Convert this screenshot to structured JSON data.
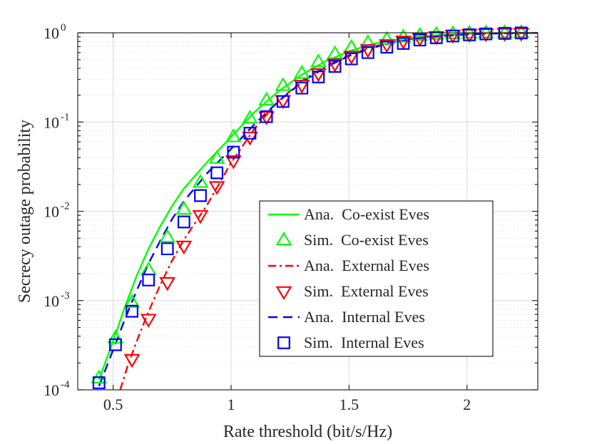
{
  "chart_data": {
    "type": "line",
    "title": "",
    "xlabel": "Rate threshold (bit/s/Hz)",
    "ylabel": "Secrecy outage probability",
    "xlim": [
      0.35,
      2.3
    ],
    "ylim": [
      0.0001,
      1
    ],
    "yscale": "log",
    "grid": true,
    "legend_position": "bottom-right",
    "x_ticks": [
      0.5,
      1,
      1.5,
      2
    ],
    "x_tick_labels": [
      "0.5",
      "1",
      "1.5",
      "2"
    ],
    "y_ticks": [
      0.0001,
      0.001,
      0.01,
      0.1,
      1
    ],
    "y_tick_labels": [
      {
        "base": "10",
        "exp": "-4"
      },
      {
        "base": "10",
        "exp": "-3"
      },
      {
        "base": "10",
        "exp": "-2"
      },
      {
        "base": "10",
        "exp": "-1"
      },
      {
        "base": "10",
        "exp": "0"
      }
    ],
    "series": [
      {
        "name": "Ana.  Co-exist Eves",
        "kind": "line",
        "color": "#00ff00",
        "dash": "solid",
        "x": [
          0.44,
          0.5,
          0.55,
          0.6,
          0.65,
          0.7,
          0.75,
          0.8,
          0.9,
          1.0,
          1.1,
          1.2,
          1.3,
          1.4,
          1.5,
          1.6,
          1.7,
          1.8,
          1.9,
          2.0,
          2.1,
          2.2,
          2.3
        ],
        "y": [
          0.00013,
          0.00035,
          0.00085,
          0.0019,
          0.0038,
          0.0068,
          0.0115,
          0.018,
          0.036,
          0.068,
          0.13,
          0.22,
          0.34,
          0.48,
          0.62,
          0.75,
          0.84,
          0.91,
          0.95,
          0.975,
          0.988,
          0.995,
          0.998
        ]
      },
      {
        "name": "Sim.  Co-exist Eves",
        "kind": "markers",
        "marker": "triangle-up",
        "color": "#00ff00",
        "x": [
          0.44,
          0.51,
          0.58,
          0.65,
          0.73,
          0.8,
          0.87,
          0.94,
          1.01,
          1.08,
          1.15,
          1.22,
          1.3,
          1.37,
          1.44,
          1.51,
          1.58,
          1.66,
          1.73,
          1.8,
          1.87,
          1.94,
          2.01,
          2.08,
          2.16,
          2.23
        ],
        "y": [
          0.000135,
          0.00038,
          0.00095,
          0.0022,
          0.0051,
          0.0105,
          0.021,
          0.039,
          0.068,
          0.11,
          0.175,
          0.255,
          0.35,
          0.47,
          0.58,
          0.68,
          0.77,
          0.84,
          0.89,
          0.93,
          0.955,
          0.972,
          0.985,
          0.992,
          0.997,
          1.0
        ]
      },
      {
        "name": "Ana.  External Eves",
        "kind": "line",
        "color": "#ff0000",
        "dash": "dashdot",
        "x": [
          0.53,
          0.56,
          0.6,
          0.65,
          0.7,
          0.75,
          0.8,
          0.9,
          1.0,
          1.1,
          1.2,
          1.3,
          1.4,
          1.5,
          1.6,
          1.7,
          1.8,
          1.9,
          2.0,
          2.1,
          2.2,
          2.3
        ],
        "y": [
          0.0001,
          0.00018,
          0.00035,
          0.00075,
          0.0015,
          0.0028,
          0.0048,
          0.012,
          0.035,
          0.085,
          0.17,
          0.29,
          0.42,
          0.56,
          0.7,
          0.8,
          0.88,
          0.93,
          0.96,
          0.98,
          0.99,
          0.995
        ]
      },
      {
        "name": "Sim.  External Eves",
        "kind": "markers",
        "marker": "triangle-down",
        "color": "#ff0000",
        "x": [
          0.58,
          0.65,
          0.73,
          0.8,
          0.87,
          0.94,
          1.01,
          1.08,
          1.15,
          1.22,
          1.3,
          1.37,
          1.44,
          1.51,
          1.58,
          1.66,
          1.73,
          1.8,
          1.87,
          1.94,
          2.01,
          2.08,
          2.16,
          2.23
        ],
        "y": [
          0.00022,
          0.00062,
          0.0016,
          0.0041,
          0.009,
          0.019,
          0.037,
          0.068,
          0.115,
          0.175,
          0.26,
          0.35,
          0.45,
          0.55,
          0.65,
          0.74,
          0.81,
          0.87,
          0.91,
          0.945,
          0.965,
          0.98,
          0.99,
          0.995
        ]
      },
      {
        "name": "Ana.  Internal Eves",
        "kind": "line",
        "color": "#0000ff",
        "dash": "dashed",
        "x": [
          0.44,
          0.5,
          0.55,
          0.6,
          0.65,
          0.7,
          0.75,
          0.8,
          0.9,
          1.0,
          1.1,
          1.2,
          1.3,
          1.4,
          1.5,
          1.6,
          1.7,
          1.8,
          1.9,
          2.0,
          2.1,
          2.2,
          2.3
        ],
        "y": [
          0.00011,
          0.00028,
          0.00062,
          0.0013,
          0.0026,
          0.0047,
          0.0082,
          0.013,
          0.027,
          0.05,
          0.095,
          0.17,
          0.28,
          0.41,
          0.55,
          0.68,
          0.79,
          0.87,
          0.92,
          0.96,
          0.98,
          0.99,
          0.995
        ]
      },
      {
        "name": "Sim.  Internal Eves",
        "kind": "markers",
        "marker": "square",
        "color": "#0000ff",
        "x": [
          0.44,
          0.51,
          0.58,
          0.65,
          0.73,
          0.8,
          0.87,
          0.94,
          1.01,
          1.08,
          1.15,
          1.22,
          1.3,
          1.37,
          1.44,
          1.51,
          1.58,
          1.66,
          1.73,
          1.8,
          1.87,
          1.94,
          2.01,
          2.08,
          2.16,
          2.23
        ],
        "y": [
          0.00012,
          0.00032,
          0.00076,
          0.0017,
          0.0038,
          0.0076,
          0.015,
          0.027,
          0.046,
          0.075,
          0.115,
          0.17,
          0.24,
          0.32,
          0.42,
          0.51,
          0.6,
          0.69,
          0.76,
          0.83,
          0.88,
          0.92,
          0.95,
          0.97,
          0.985,
          0.995
        ]
      }
    ]
  }
}
